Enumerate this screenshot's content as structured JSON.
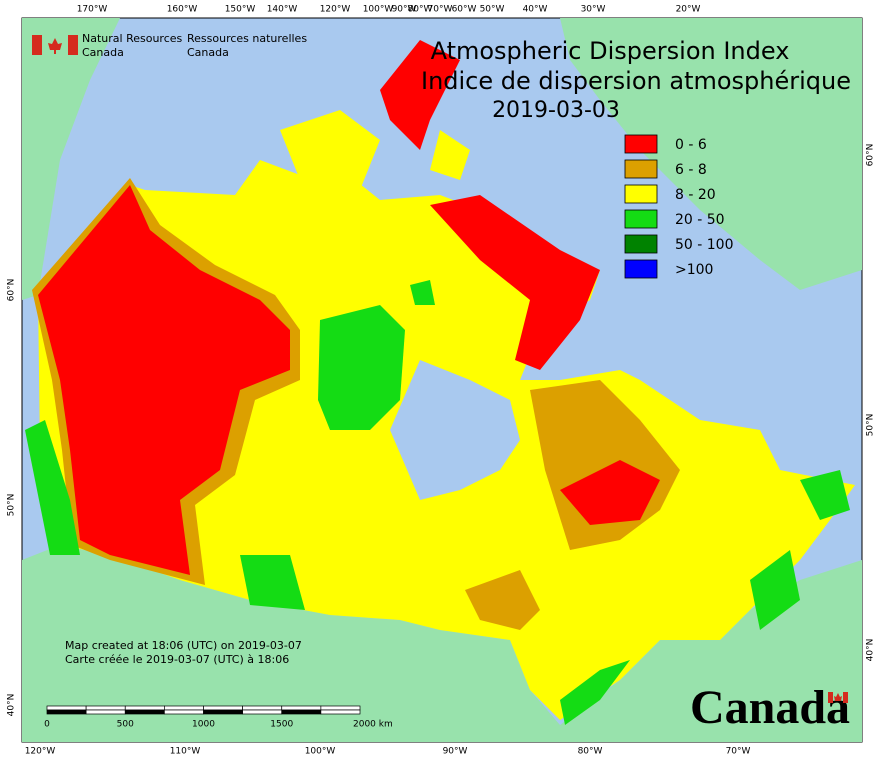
{
  "agency": {
    "english": [
      "Natural Resources",
      "Canada"
    ],
    "french": [
      "Ressources naturelles",
      "Canada"
    ]
  },
  "title": {
    "english": "Atmospheric Dispersion Index",
    "french": "Indice de dispersion atmosphérique",
    "date": "2019-03-03"
  },
  "legend": [
    {
      "label": "0 - 6",
      "color": "#ff0000"
    },
    {
      "label": "6 - 8",
      "color": "#dca000"
    },
    {
      "label": "8 - 20",
      "color": "#ffff00"
    },
    {
      "label": "20 - 50",
      "color": "#14dc14"
    },
    {
      "label": "50 - 100",
      "color": "#008200"
    },
    {
      "label": ">100",
      "color": "#0000ff"
    }
  ],
  "graticule": {
    "top": [
      "170°W",
      "160°W",
      "150°W",
      "140°W",
      "120°W",
      "100°W",
      "90°W",
      "80°W",
      "70°W",
      "60°W",
      "50°W",
      "40°W",
      "30°W",
      "20°W"
    ],
    "bottom": [
      "120°W",
      "110°W",
      "100°W",
      "90°W",
      "80°W",
      "70°W"
    ],
    "left": [
      "60°N",
      "50°N",
      "40°N"
    ],
    "right": [
      "60°N",
      "50°N",
      "40°N"
    ]
  },
  "credits": [
    "Map created at 18:06 (UTC) on 2019-03-07",
    "Carte créée le 2019-03-07 (UTC) à 18:06"
  ],
  "scale_bar": [
    "0",
    "500",
    "1000",
    "1500",
    "2000 km"
  ],
  "wordmark": "Canada"
}
